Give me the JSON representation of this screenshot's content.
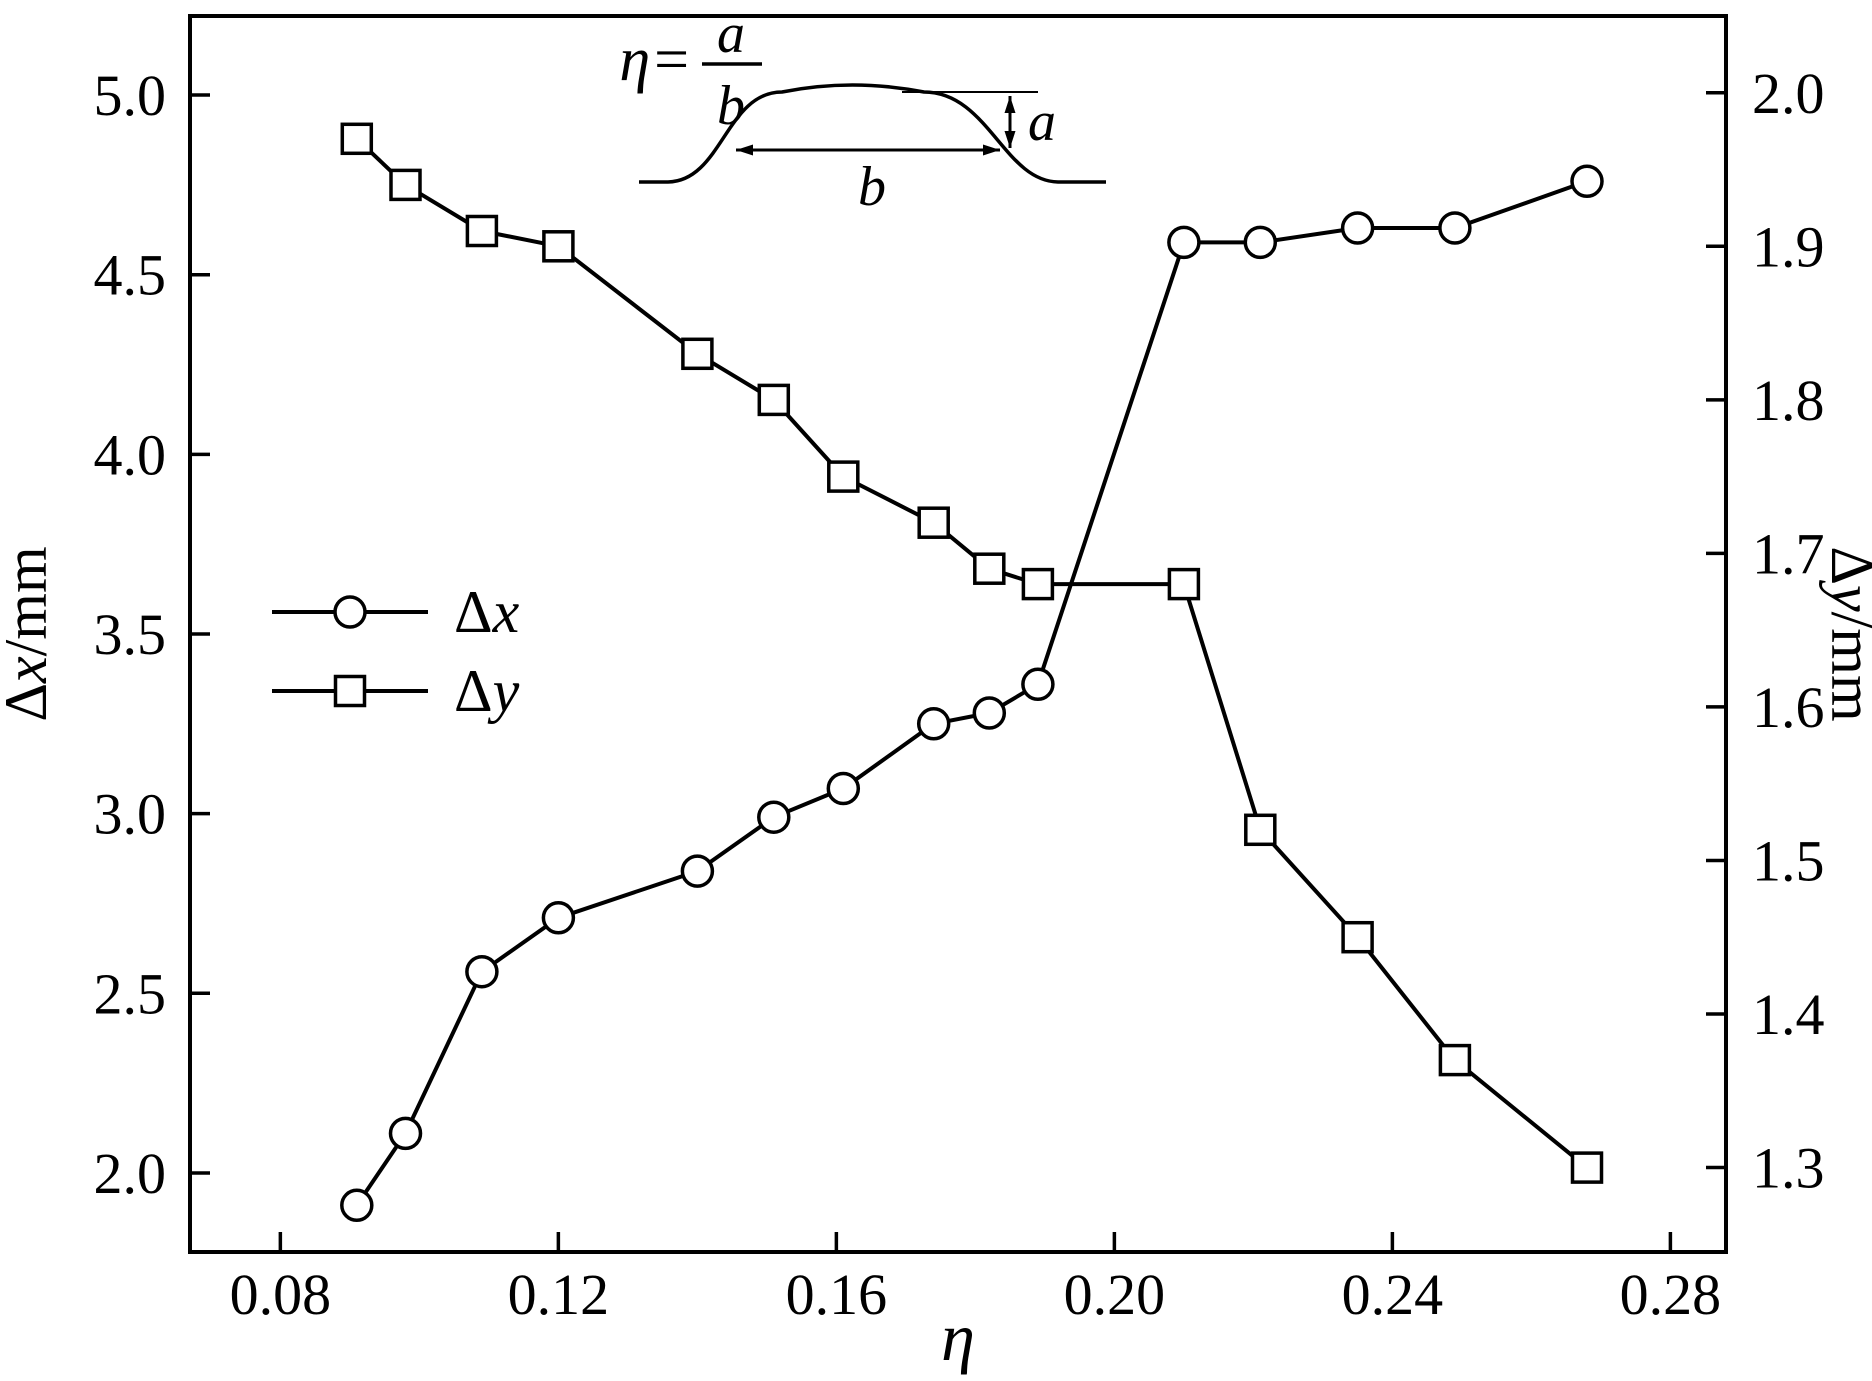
{
  "figure": {
    "ink_color": "#000000",
    "background_color": "#ffffff",
    "marker_fill": "#ffffff"
  },
  "chart_data": {
    "type": "line",
    "title": "",
    "grid": false,
    "legend_position": "center-left",
    "x_axis": {
      "label": "η",
      "ticks": [
        "0.08",
        "0.12",
        "0.16",
        "0.20",
        "0.24",
        "0.28"
      ],
      "tick_values": [
        0.08,
        0.12,
        0.16,
        0.2,
        0.24,
        0.28
      ],
      "range": [
        0.067,
        0.288
      ]
    },
    "y_axis_left": {
      "label": "Δx/mm",
      "label_parts": [
        {
          "text": "Δ",
          "italic": false
        },
        {
          "text": "x",
          "italic": true
        },
        {
          "text": "/mm",
          "italic": false
        }
      ],
      "ticks": [
        "2.0",
        "2.5",
        "3.0",
        "3.5",
        "4.0",
        "4.5",
        "5.0"
      ],
      "tick_values": [
        2.0,
        2.5,
        3.0,
        3.5,
        4.0,
        4.5,
        5.0
      ],
      "range": [
        1.78,
        5.22
      ]
    },
    "y_axis_right": {
      "label": "Δy/mm",
      "label_parts": [
        {
          "text": "Δ",
          "italic": false
        },
        {
          "text": "y",
          "italic": true
        },
        {
          "text": "/mm",
          "italic": false
        }
      ],
      "ticks": [
        "1.3",
        "1.4",
        "1.5",
        "1.6",
        "1.7",
        "1.8",
        "1.9",
        "2.0"
      ],
      "tick_values": [
        1.3,
        1.4,
        1.5,
        1.6,
        1.7,
        1.8,
        1.9,
        2.0
      ],
      "range": [
        1.245,
        2.05
      ]
    },
    "x": [
      0.091,
      0.098,
      0.109,
      0.12,
      0.14,
      0.151,
      0.161,
      0.174,
      0.182,
      0.189,
      0.21,
      0.221,
      0.235,
      0.249,
      0.268
    ],
    "series": [
      {
        "id": "dx",
        "name": "Δx",
        "label_parts": [
          {
            "text": "Δ",
            "italic": false
          },
          {
            "text": "x",
            "italic": true
          }
        ],
        "marker": "circle",
        "axis": "left",
        "values": [
          1.91,
          2.11,
          2.56,
          2.71,
          2.84,
          2.99,
          3.07,
          3.25,
          3.28,
          3.36,
          4.59,
          4.59,
          4.63,
          4.63,
          4.76
        ]
      },
      {
        "id": "dy",
        "name": "Δy",
        "label_parts": [
          {
            "text": "Δ",
            "italic": false
          },
          {
            "text": "y",
            "italic": true
          }
        ],
        "marker": "square",
        "axis": "right",
        "values": [
          1.97,
          1.94,
          1.91,
          1.9,
          1.83,
          1.8,
          1.75,
          1.72,
          1.69,
          1.68,
          1.68,
          1.52,
          1.45,
          1.37,
          1.3
        ]
      }
    ],
    "annotation": {
      "formula_lhs": "η=",
      "fraction_numerator": "a",
      "fraction_denominator": "b",
      "height_label": "a",
      "width_label": "b"
    }
  }
}
